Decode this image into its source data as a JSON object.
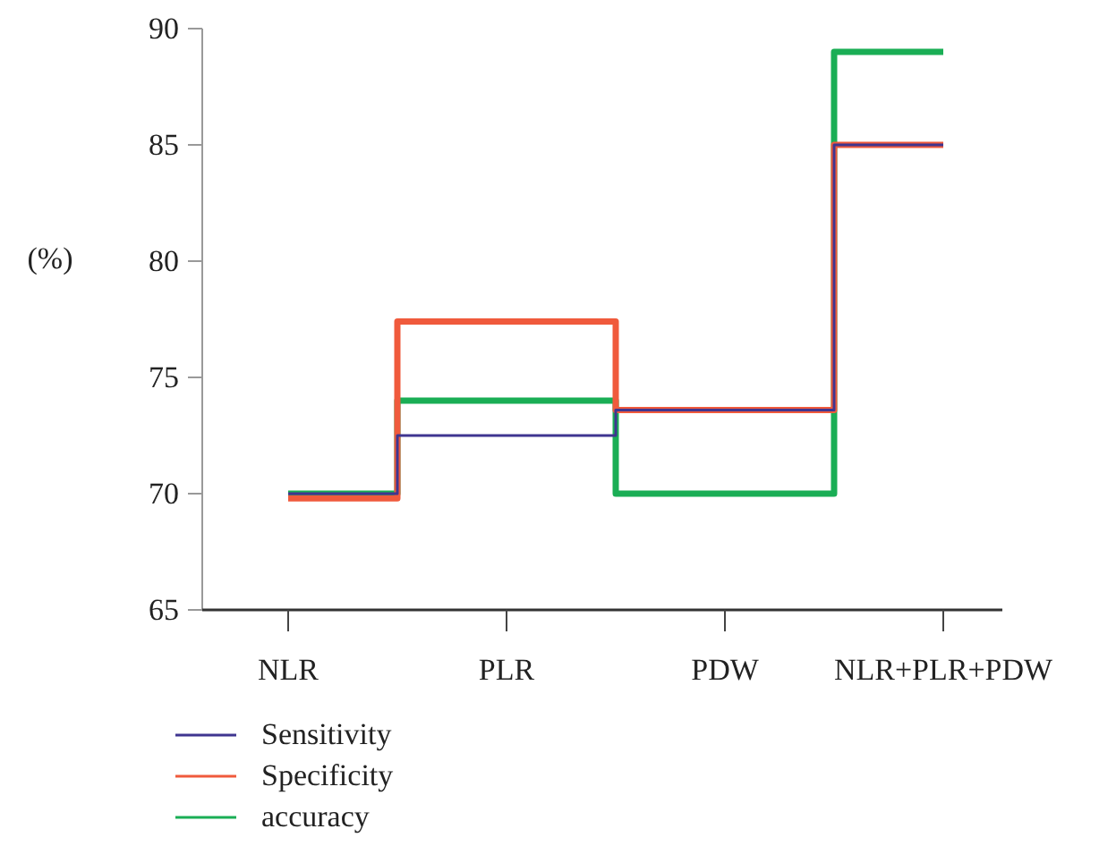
{
  "chart_data": {
    "type": "step",
    "ylabel": "(%)",
    "categories": [
      "NLR",
      "PLR",
      "PDW",
      "NLR+PLR+PDW"
    ],
    "series": [
      {
        "name": "Sensitivity",
        "color": "#3f3590",
        "values": [
          70.0,
          72.5,
          73.6,
          85.0
        ]
      },
      {
        "name": "Specificity",
        "color": "#f05a3c",
        "values": [
          69.8,
          77.4,
          73.6,
          85.0
        ]
      },
      {
        "name": "accuracy",
        "color": "#1aae55",
        "values": [
          70.0,
          74.0,
          70.0,
          89.0
        ]
      }
    ],
    "ylim": [
      65,
      90
    ],
    "yticks": [
      65,
      70,
      75,
      80,
      85,
      90
    ],
    "grid": false,
    "legend": "bottom left"
  }
}
